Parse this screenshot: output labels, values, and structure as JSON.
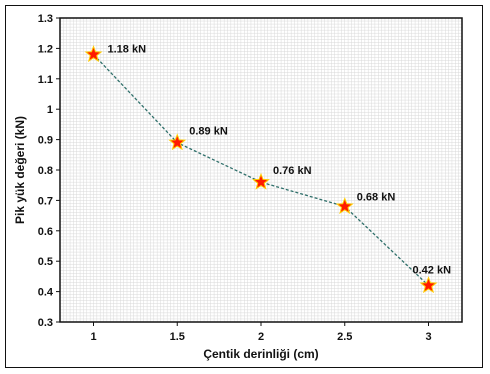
{
  "chart_data": {
    "type": "line",
    "title": "",
    "xlabel": "Çentik derinliği (cm)",
    "ylabel": "Pik yük değeri (kN)",
    "x": [
      1,
      1.5,
      2,
      2.5,
      3
    ],
    "values": [
      1.18,
      0.89,
      0.76,
      0.68,
      0.42
    ],
    "data_labels": [
      "1.18 kN",
      "0.89 kN",
      "0.76 kN",
      "0.68 kN",
      "0.42 kN"
    ],
    "xticks": [
      "1",
      "1.5",
      "2",
      "2.5",
      "3"
    ],
    "yticks": [
      "0.3",
      "0.4",
      "0.5",
      "0.6",
      "0.7",
      "0.8",
      "0.9",
      "1",
      "1.1",
      "1.2",
      "1.3"
    ],
    "xlim": [
      0.8,
      3.2
    ],
    "ylim": [
      0.3,
      1.3
    ],
    "grid": true,
    "marker": "star",
    "line_style": "dashed",
    "colors": {
      "line": "#2f6f6a",
      "marker_fill": "#ff1a00",
      "marker_stroke": "#ffcc00",
      "grid": "#d9d9d9"
    }
  }
}
